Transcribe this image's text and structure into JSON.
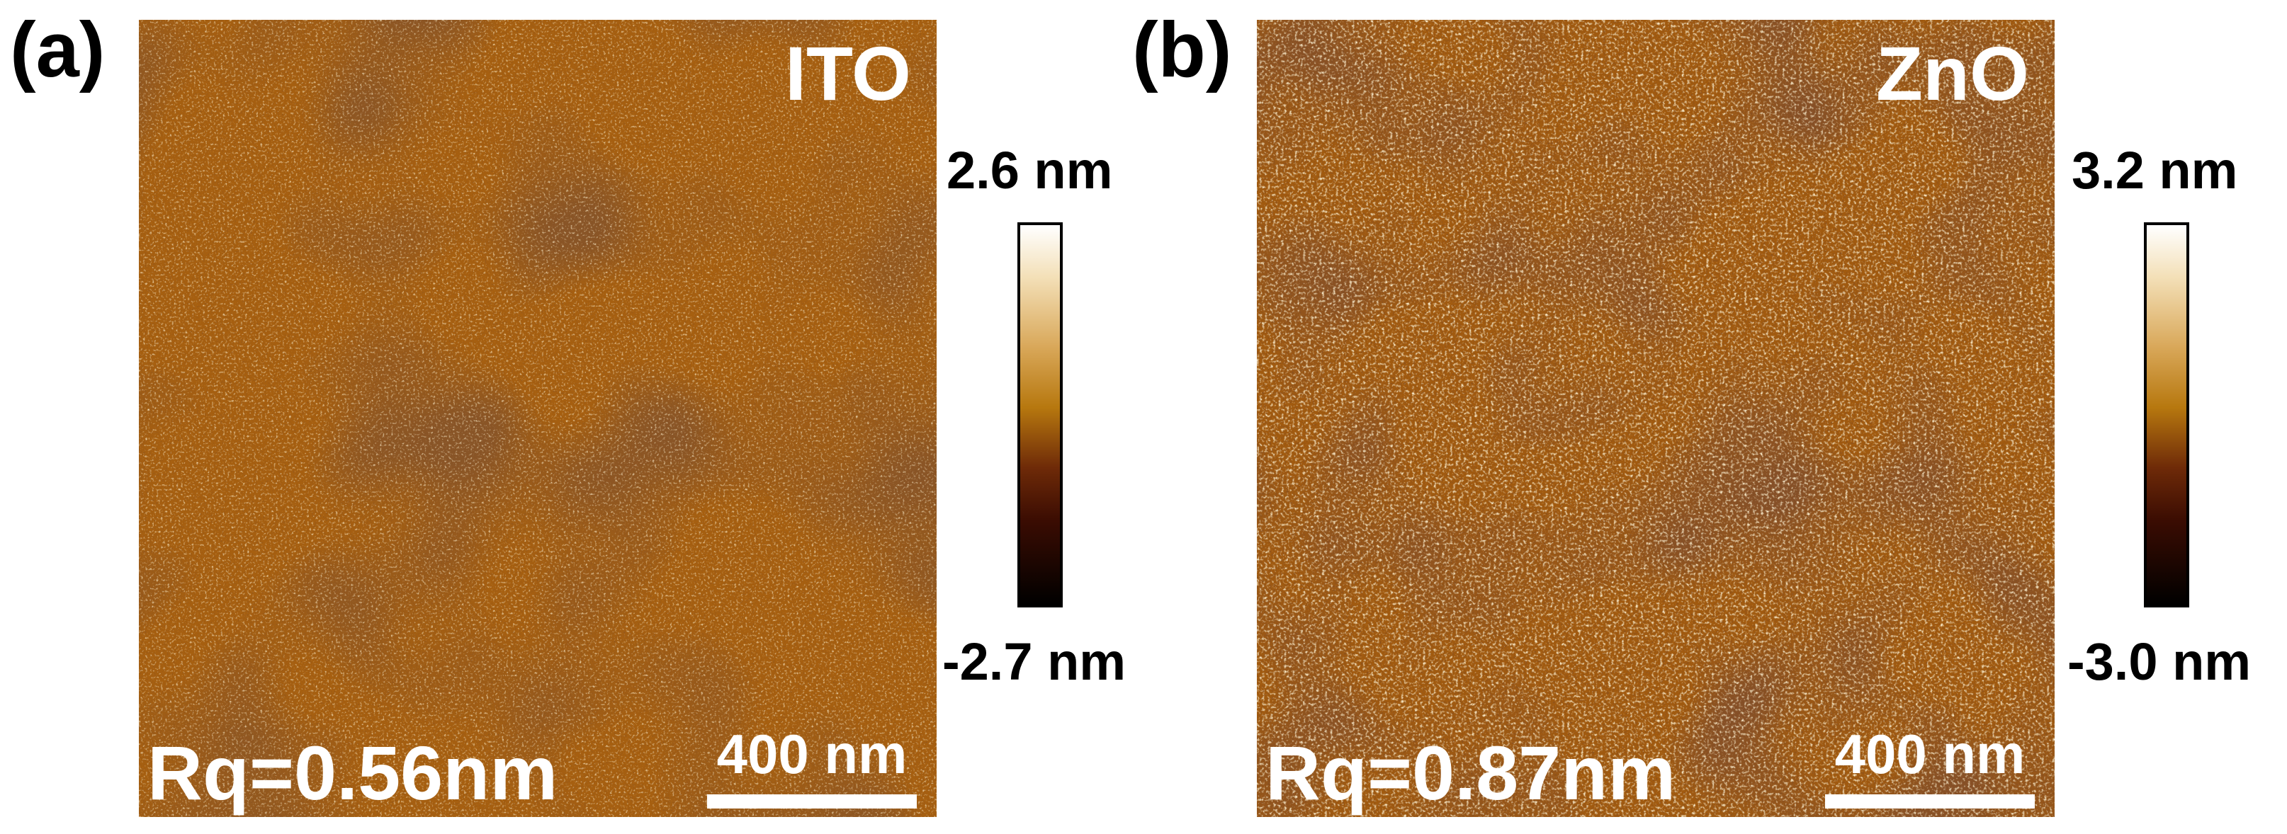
{
  "figure": {
    "panels": [
      {
        "label": "(a)",
        "sample": "ITO",
        "roughness": "Rq=0.56nm",
        "scale_bar": "400 nm",
        "colorbar_max": "2.6 nm",
        "colorbar_min": "-2.7 nm"
      },
      {
        "label": "(b)",
        "sample": "ZnO",
        "roughness": "Rq=0.87nm",
        "scale_bar": "400 nm",
        "colorbar_max": "3.2 nm",
        "colorbar_min": "-3.0 nm"
      }
    ],
    "colors": {
      "afm_base": "#a65f10",
      "afm_dark": "#3d1405",
      "afm_bright": "#ffe9b8",
      "text_overlay": "#ffffff"
    }
  }
}
